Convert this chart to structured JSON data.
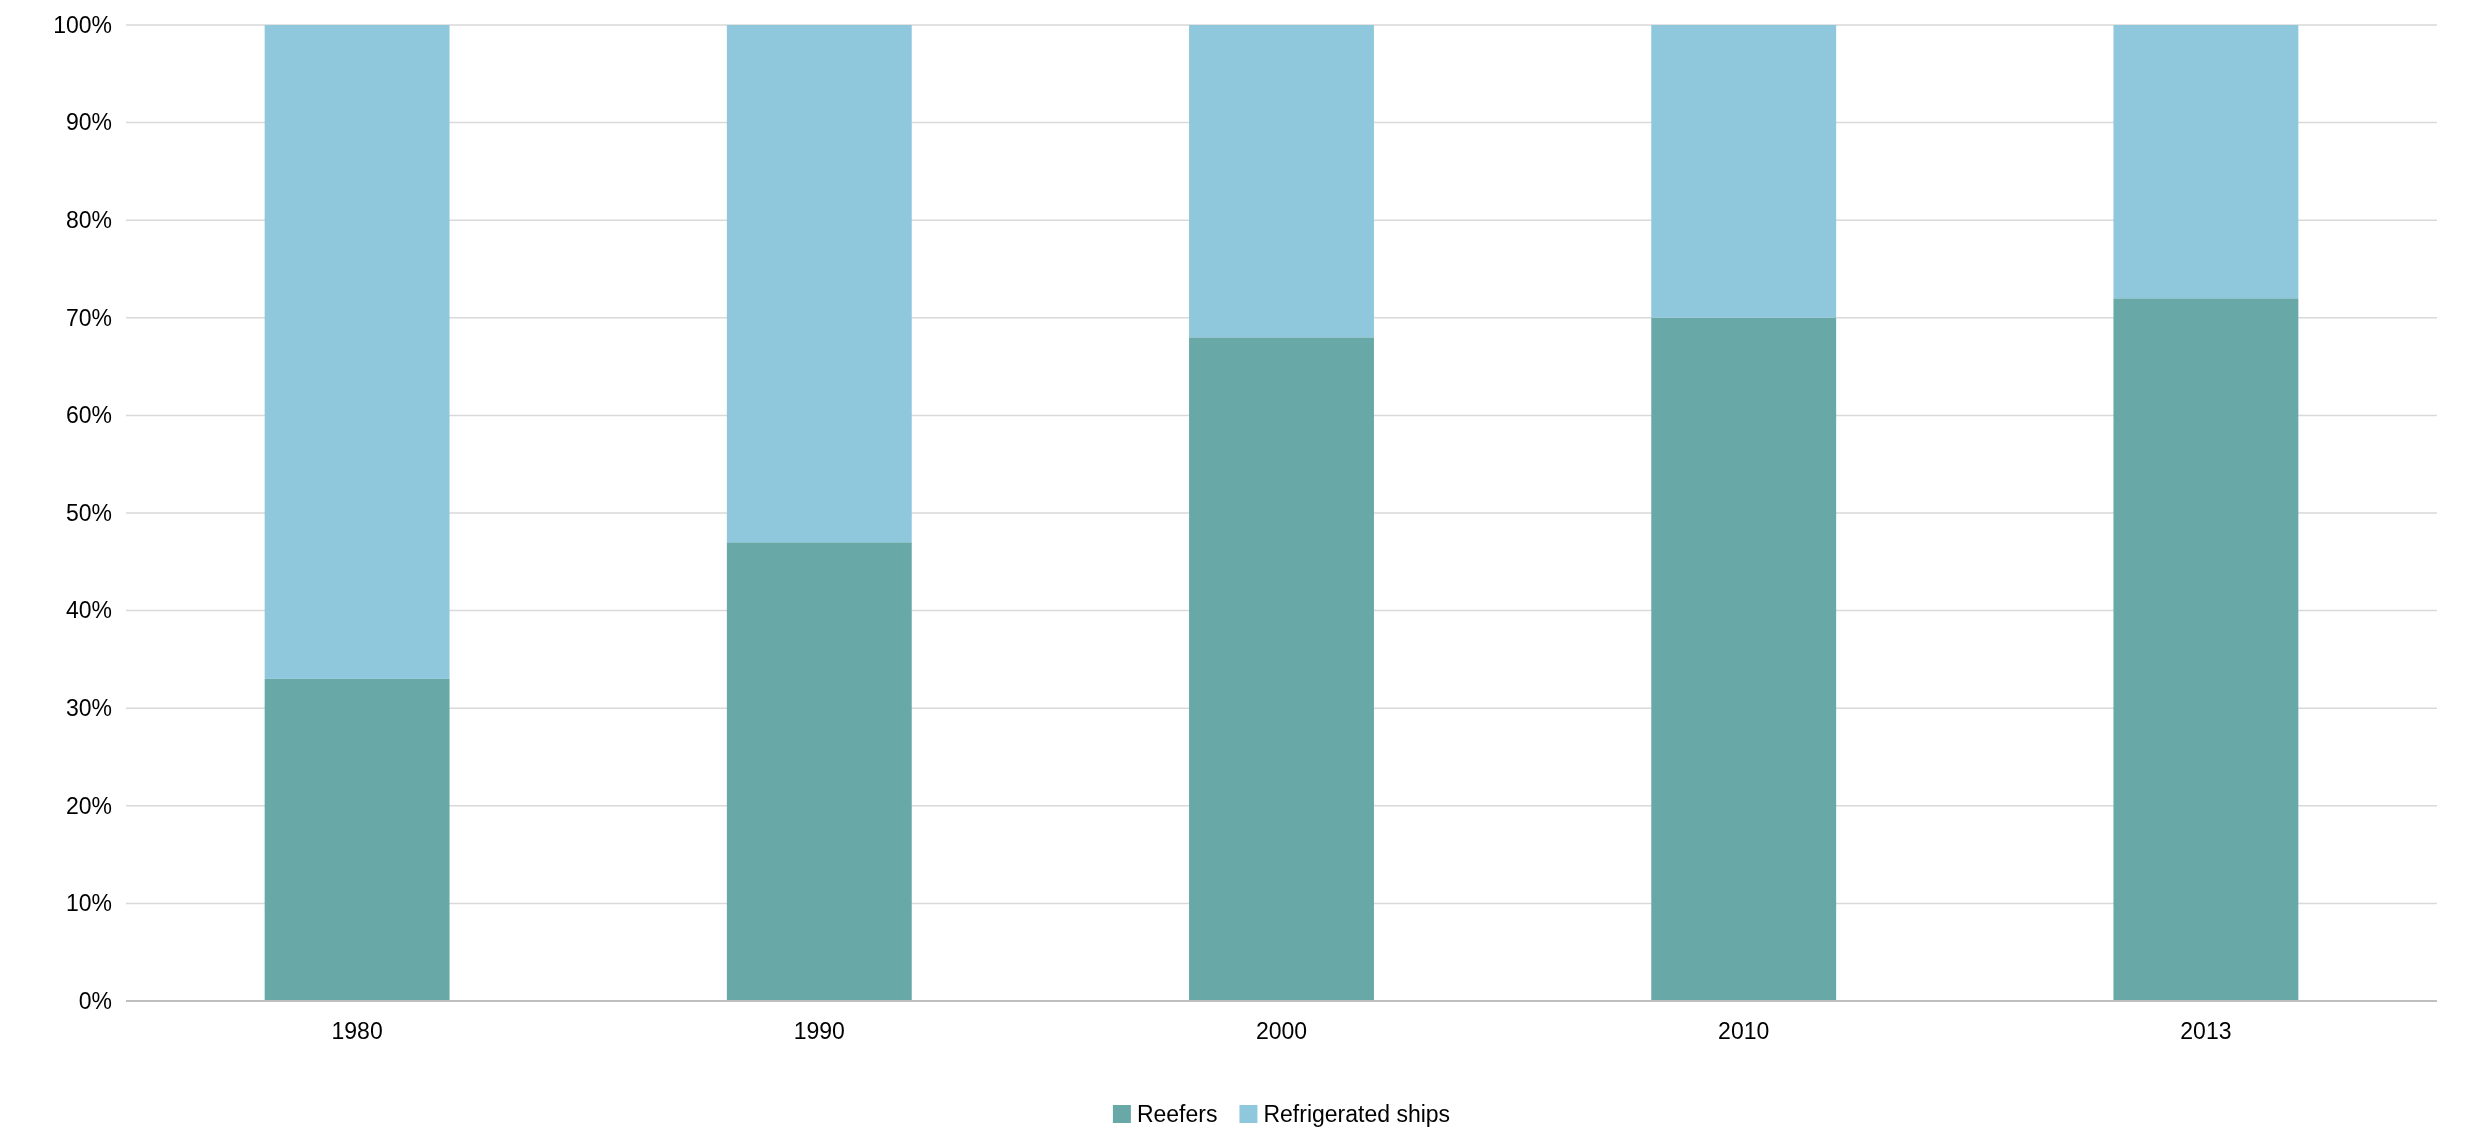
{
  "chart_data": {
    "type": "bar",
    "stacked": true,
    "categories": [
      "1980",
      "1990",
      "2000",
      "2010",
      "2013"
    ],
    "series": [
      {
        "name": "Reefers",
        "color": "#68a8a7",
        "values": [
          33,
          47,
          68,
          70,
          72
        ]
      },
      {
        "name": "Refrigerated ships",
        "color": "#8fc8dd",
        "values": [
          67,
          53,
          32,
          30,
          28
        ]
      }
    ],
    "ylim": [
      0,
      100
    ],
    "yticks": [
      {
        "value": 0,
        "label": "0%"
      },
      {
        "value": 10,
        "label": "10%"
      },
      {
        "value": 20,
        "label": "20%"
      },
      {
        "value": 30,
        "label": "30%"
      },
      {
        "value": 40,
        "label": "40%"
      },
      {
        "value": 50,
        "label": "50%"
      },
      {
        "value": 60,
        "label": "60%"
      },
      {
        "value": 70,
        "label": "70%"
      },
      {
        "value": 80,
        "label": "80%"
      },
      {
        "value": 90,
        "label": "90%"
      },
      {
        "value": 100,
        "label": "100%"
      }
    ],
    "grid": "y",
    "legend": "bottom"
  }
}
